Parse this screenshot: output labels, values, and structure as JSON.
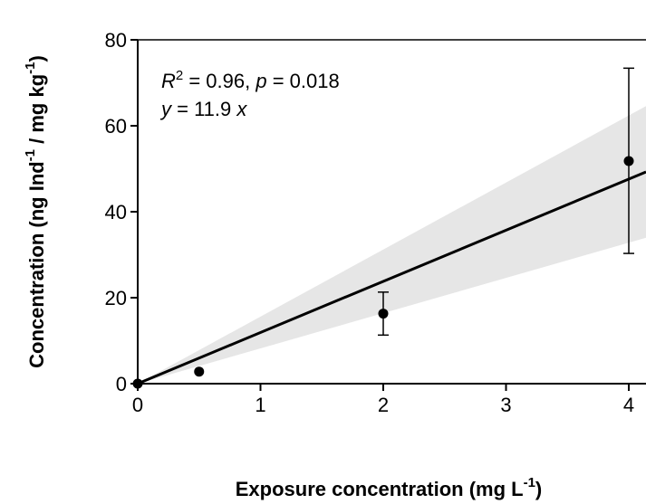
{
  "chart_data": {
    "type": "scatter",
    "title": "",
    "xlabel": "Exposure concentration (mg L",
    "xlabel_unit_exp": "-1",
    "xlabel_close": ")",
    "ylabel_parts": [
      {
        "text": "Concentration (ng Ind",
        "sup": false
      },
      {
        "text": "-1",
        "sup": true
      },
      {
        "text": " / mg kg",
        "sup": false
      },
      {
        "text": "-1",
        "sup": true
      },
      {
        "text": ")",
        "sup": false
      }
    ],
    "xlim": [
      0,
      4.15
    ],
    "ylim": [
      0,
      80
    ],
    "xticks": [
      "0",
      "1",
      "2",
      "3",
      "4"
    ],
    "yticks": [
      "0",
      "20",
      "40",
      "60",
      "80"
    ],
    "grid": false,
    "points": [
      {
        "x": 0,
        "y": 0,
        "err_low": 0,
        "err_high": 0
      },
      {
        "x": 0.5,
        "y": 2.8,
        "err_low": 2.8,
        "err_high": 2.8
      },
      {
        "x": 2,
        "y": 16.3,
        "err_low": 11.3,
        "err_high": 21.3
      },
      {
        "x": 4,
        "y": 51.8,
        "err_low": 30.3,
        "err_high": 73.4
      }
    ],
    "fit": {
      "slope": 11.9,
      "ci_slope_low": 8.2,
      "ci_slope_high": 15.6
    },
    "annotation": {
      "r_label": "R",
      "r_exp": "2",
      "r_value": " = 0.96, ",
      "p_label": "p",
      "p_value": "  = 0.018",
      "eq_y": "y",
      "eq_mid": " = 11.9 ",
      "eq_x": "x"
    },
    "colors": {
      "band": "#e6e6e6",
      "line": "#000000",
      "points": "#000000"
    }
  }
}
